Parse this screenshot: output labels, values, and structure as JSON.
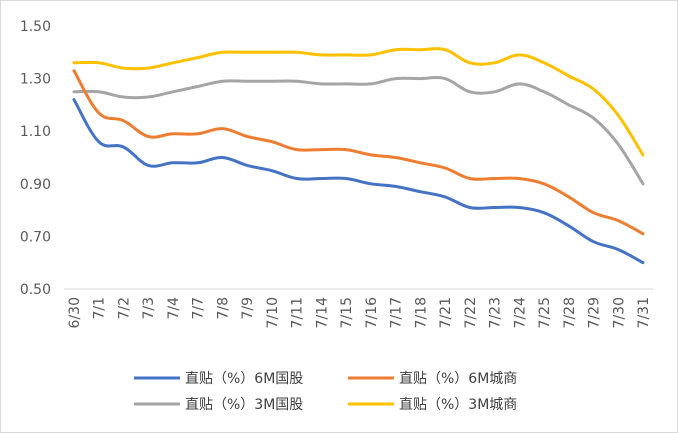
{
  "chart_data": {
    "type": "line",
    "x": [
      "6/30",
      "7/1",
      "7/2",
      "7/3",
      "7/4",
      "7/7",
      "7/8",
      "7/9",
      "7/10",
      "7/11",
      "7/14",
      "7/15",
      "7/16",
      "7/17",
      "7/18",
      "7/21",
      "7/22",
      "7/23",
      "7/24",
      "7/25",
      "7/28",
      "7/29",
      "7/30",
      "7/31"
    ],
    "ylim": [
      0.5,
      1.5
    ],
    "yticks": [
      "0.50",
      "0.70",
      "0.90",
      "1.10",
      "1.30",
      "1.50"
    ],
    "grid": false,
    "legend_position": "bottom",
    "series": [
      {
        "name": "直贴（%）6M国股",
        "color": "#4472C4",
        "values": [
          1.22,
          1.06,
          1.04,
          0.97,
          0.98,
          0.98,
          1.0,
          0.97,
          0.95,
          0.92,
          0.92,
          0.92,
          0.9,
          0.89,
          0.87,
          0.85,
          0.81,
          0.81,
          0.81,
          0.79,
          0.74,
          0.68,
          0.65,
          0.6
        ]
      },
      {
        "name": "直贴（%）6M城商",
        "color": "#ED7D31",
        "values": [
          1.33,
          1.17,
          1.14,
          1.08,
          1.09,
          1.09,
          1.11,
          1.08,
          1.06,
          1.03,
          1.03,
          1.03,
          1.01,
          1.0,
          0.98,
          0.96,
          0.92,
          0.92,
          0.92,
          0.9,
          0.85,
          0.79,
          0.76,
          0.71
        ]
      },
      {
        "name": "直贴（%）3M国股",
        "color": "#A5A5A5",
        "values": [
          1.25,
          1.25,
          1.23,
          1.23,
          1.25,
          1.27,
          1.29,
          1.29,
          1.29,
          1.29,
          1.28,
          1.28,
          1.28,
          1.3,
          1.3,
          1.3,
          1.25,
          1.25,
          1.28,
          1.25,
          1.2,
          1.15,
          1.05,
          0.9
        ]
      },
      {
        "name": "直贴（%）3M城商",
        "color": "#FFC000",
        "values": [
          1.36,
          1.36,
          1.34,
          1.34,
          1.36,
          1.38,
          1.4,
          1.4,
          1.4,
          1.4,
          1.39,
          1.39,
          1.39,
          1.41,
          1.41,
          1.41,
          1.36,
          1.36,
          1.39,
          1.36,
          1.31,
          1.26,
          1.16,
          1.01
        ]
      }
    ]
  }
}
